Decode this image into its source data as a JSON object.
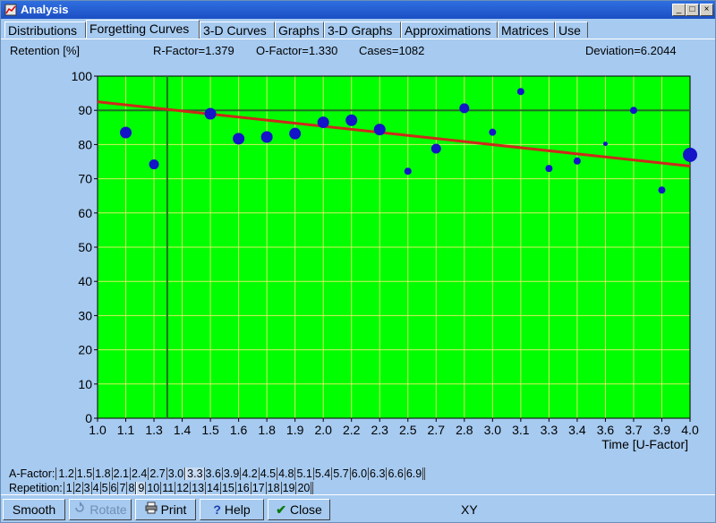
{
  "window": {
    "title": "Analysis",
    "min": "_",
    "max": "□",
    "close": "×"
  },
  "tabs": [
    {
      "label": "Distributions",
      "active": false
    },
    {
      "label": "Forgetting Curves",
      "active": true
    },
    {
      "label": "3-D Curves",
      "active": false
    },
    {
      "label": "Graphs",
      "active": false
    },
    {
      "label": "3-D Graphs",
      "active": false
    },
    {
      "label": "Approximations",
      "active": false
    },
    {
      "label": "Matrices",
      "active": false
    },
    {
      "label": "Use",
      "active": false
    }
  ],
  "info": {
    "ylabel": "Retention [%]",
    "r_factor": "R-Factor=1.379",
    "o_factor": "O-Factor=1.330",
    "cases": "Cases=1082",
    "deviation": "Deviation=6.2044"
  },
  "chart_data": {
    "type": "scatter",
    "xlabel": "Time [U-Factor]",
    "ylabel": "Retention [%]",
    "x_ticks": [
      "1.0",
      "1.1",
      "1.3",
      "1.4",
      "1.5",
      "1.6",
      "1.8",
      "1.9",
      "2.0",
      "2.2",
      "2.3",
      "2.5",
      "2.7",
      "2.8",
      "3.0",
      "3.1",
      "3.3",
      "3.4",
      "3.6",
      "3.7",
      "3.9",
      "4.0"
    ],
    "ylim": [
      0,
      100
    ],
    "y_ticks": [
      0,
      10,
      20,
      30,
      40,
      50,
      60,
      70,
      80,
      90,
      100
    ],
    "grid": true,
    "background": "#00ff00",
    "points": [
      {
        "x": "1.1",
        "y": 83.5,
        "size": "large"
      },
      {
        "x": "1.3",
        "y": 74.2,
        "size": "medium"
      },
      {
        "x": "1.5",
        "y": 89.0,
        "size": "large"
      },
      {
        "x": "1.6",
        "y": 81.7,
        "size": "large"
      },
      {
        "x": "1.8",
        "y": 82.2,
        "size": "large"
      },
      {
        "x": "1.9",
        "y": 83.2,
        "size": "large"
      },
      {
        "x": "2.0",
        "y": 86.5,
        "size": "large"
      },
      {
        "x": "2.2",
        "y": 87.1,
        "size": "large"
      },
      {
        "x": "2.3",
        "y": 84.4,
        "size": "large"
      },
      {
        "x": "2.5",
        "y": 72.2,
        "size": "small"
      },
      {
        "x": "2.7",
        "y": 78.8,
        "size": "medium"
      },
      {
        "x": "2.8",
        "y": 90.6,
        "size": "medium"
      },
      {
        "x": "3.0",
        "y": 83.6,
        "size": "small"
      },
      {
        "x": "3.1",
        "y": 95.5,
        "size": "small"
      },
      {
        "x": "3.3",
        "y": 73.0,
        "size": "small"
      },
      {
        "x": "3.4",
        "y": 75.2,
        "size": "small"
      },
      {
        "x": "3.6",
        "y": 80.2,
        "size": "tiny"
      },
      {
        "x": "3.7",
        "y": 90.0,
        "size": "small"
      },
      {
        "x": "3.9",
        "y": 66.7,
        "size": "small"
      },
      {
        "x": "4.0",
        "y": 77.0,
        "size": "xlarge"
      }
    ],
    "regression": {
      "start": {
        "x": "1.0",
        "y": 92.5
      },
      "end": {
        "x": "4.0",
        "y": 73.7
      },
      "color": "#cc2a1a"
    },
    "requested_retention": {
      "y": 90,
      "color": "#226e22"
    },
    "vertical_marker": {
      "x_between": [
        "1.3",
        "1.4"
      ],
      "fraction": 0.47,
      "color": "#226e22"
    },
    "point_color": "#1414c8"
  },
  "afactor": {
    "label": "A-Factor:",
    "values": [
      "1.2",
      "1.5",
      "1.8",
      "2.1",
      "2.4",
      "2.7",
      "3.0",
      "3.3",
      "3.6",
      "3.9",
      "4.2",
      "4.5",
      "4.8",
      "5.1",
      "5.4",
      "5.7",
      "6.0",
      "6.3",
      "6.6",
      "6.9"
    ],
    "selected": "3.3"
  },
  "repetition": {
    "label": "Repetition:",
    "values": [
      "1",
      "2",
      "3",
      "4",
      "5",
      "6",
      "7",
      "8",
      "9",
      "10",
      "11",
      "12",
      "13",
      "14",
      "15",
      "16",
      "17",
      "18",
      "19",
      "20"
    ],
    "selected": "9"
  },
  "toolbar": {
    "smooth": "Smooth",
    "rotate": "Rotate",
    "print": "Print",
    "help": "Help",
    "close": "Close",
    "help_icon": "?",
    "close_icon": "✔",
    "mode": "XY"
  }
}
